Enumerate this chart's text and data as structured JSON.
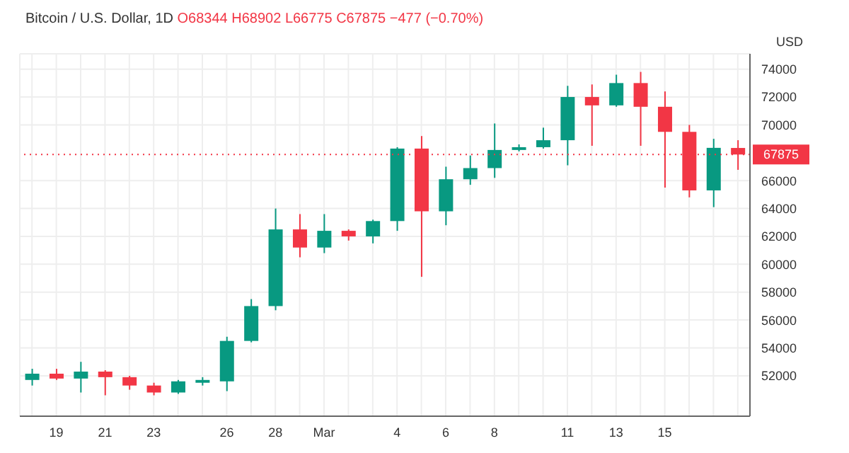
{
  "chart_data": {
    "type": "candlestick",
    "title": "Bitcoin / U.S. Dollar, 1D",
    "subtitle": "O68344 H68902 L66775 C67875 −477 (−0.70%)",
    "ylabel": "USD",
    "categories": [
      null,
      "19",
      null,
      "21",
      null,
      "23",
      null,
      null,
      "26",
      null,
      "28",
      null,
      "Mar",
      null,
      null,
      "4",
      null,
      "6",
      null,
      "8",
      null,
      null,
      "11",
      null,
      "13",
      null,
      "15",
      null,
      null,
      null
    ],
    "ohlc": [
      [
        51700,
        52500,
        51300,
        52150
      ],
      [
        52150,
        52500,
        51700,
        51800
      ],
      [
        51800,
        53000,
        50800,
        52300
      ],
      [
        52300,
        52400,
        50600,
        51900
      ],
      [
        51900,
        52000,
        51000,
        51300
      ],
      [
        51300,
        51500,
        50600,
        50800
      ],
      [
        50800,
        51700,
        50700,
        51600
      ],
      [
        51500,
        51900,
        51300,
        51700
      ],
      [
        51600,
        54800,
        50900,
        54500
      ],
      [
        54500,
        57500,
        54400,
        57000
      ],
      [
        57000,
        64000,
        56700,
        62500
      ],
      [
        62500,
        63600,
        60500,
        61200
      ],
      [
        61200,
        63600,
        60800,
        62400
      ],
      [
        62400,
        62500,
        61700,
        62000
      ],
      [
        62000,
        63200,
        61500,
        63100
      ],
      [
        63100,
        68400,
        62400,
        68300
      ],
      [
        68300,
        69200,
        59100,
        63800
      ],
      [
        63800,
        67000,
        62800,
        66100
      ],
      [
        66100,
        67800,
        65700,
        66900
      ],
      [
        66900,
        70100,
        66200,
        68200
      ],
      [
        68200,
        68600,
        68100,
        68400
      ],
      [
        68400,
        69800,
        68300,
        68900
      ],
      [
        68900,
        72800,
        67100,
        72000
      ],
      [
        72000,
        72900,
        68500,
        71400
      ],
      [
        71400,
        73600,
        71300,
        73000
      ],
      [
        73000,
        73800,
        68500,
        71300
      ],
      [
        71300,
        72400,
        65500,
        69500
      ],
      [
        69500,
        70000,
        64800,
        65300
      ],
      [
        65300,
        69000,
        64100,
        68352
      ],
      [
        68344,
        68902,
        66775,
        67875
      ]
    ],
    "colors": [
      "#089981",
      "#f23645",
      "#089981",
      "#f23645",
      "#f23645",
      "#f23645",
      "#089981",
      "#089981",
      "#089981",
      "#089981",
      "#089981",
      "#f23645",
      "#089981",
      "#f23645",
      "#089981",
      "#089981",
      "#f23645",
      "#089981",
      "#089981",
      "#089981",
      "#089981",
      "#089981",
      "#089981",
      "#f23645",
      "#089981",
      "#f23645",
      "#f23645",
      "#f23645",
      "#089981",
      "#f23645"
    ],
    "ylim": [
      49100,
      75100
    ],
    "yticks": [
      52000,
      54000,
      56000,
      58000,
      60000,
      62000,
      64000,
      66000,
      70000,
      72000,
      74000
    ],
    "ref_lines": [
      {
        "axis": "y",
        "value": 67875,
        "label": "67875",
        "color": "#f23645",
        "line_style": "dotted"
      }
    ],
    "grid": true
  }
}
